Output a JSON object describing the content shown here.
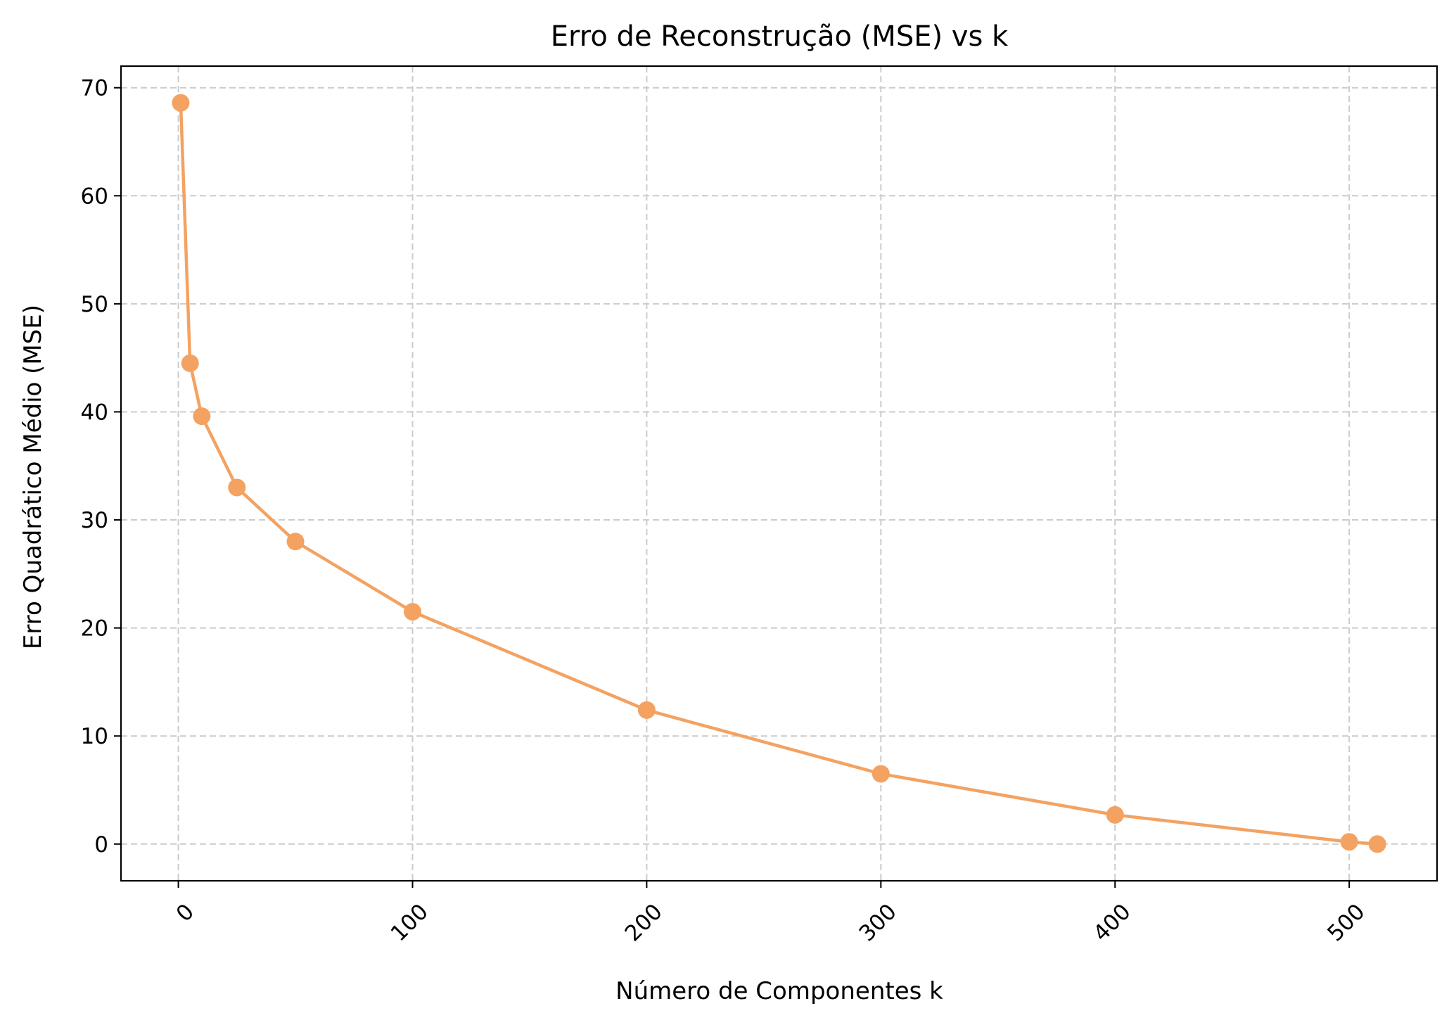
{
  "chart_data": {
    "type": "line",
    "title": "Erro de Reconstrução (MSE) vs k",
    "xlabel": "Número de Componentes k",
    "ylabel": "Erro Quadrático Médio (MSE)",
    "x": [
      1,
      5,
      10,
      25,
      50,
      100,
      200,
      300,
      400,
      500,
      512
    ],
    "series": [
      {
        "values": [
          68.6,
          44.5,
          39.6,
          33.0,
          28.0,
          21.5,
          12.4,
          6.5,
          2.7,
          0.2,
          0.0
        ],
        "color": "#f4a261",
        "marker": "circle"
      }
    ],
    "xlim": [
      -24.5,
      537.5
    ],
    "ylim": [
      -3.4,
      72.0
    ],
    "xticks": [
      0,
      100,
      200,
      300,
      400,
      500
    ],
    "xtick_labels": [
      "0",
      "100",
      "200",
      "300",
      "400",
      "500"
    ],
    "yticks": [
      0,
      10,
      20,
      30,
      40,
      50,
      60,
      70
    ],
    "ytick_labels": [
      "0",
      "10",
      "20",
      "30",
      "40",
      "50",
      "60",
      "70"
    ],
    "xtick_rotation": 45,
    "grid": true,
    "grid_style": "dashed",
    "grid_color": "#cccccc",
    "legend": "none"
  }
}
